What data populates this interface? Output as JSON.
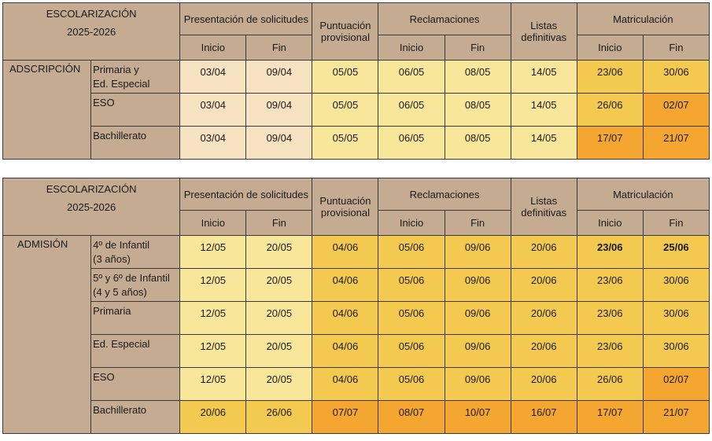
{
  "headers": {
    "title_line1": "ESCOLARIZACIÓN",
    "title_line2": "2025-2026",
    "presentacion": "Presentación de solicitudes",
    "puntuacion_line1": "Puntuación",
    "puntuacion_line2": "provisional",
    "reclamaciones": "Reclamaciones",
    "listas_line1": "Listas",
    "listas_line2": "definitivas",
    "matriculacion": "Matriculación",
    "inicio": "Inicio",
    "fin": "Fin"
  },
  "colors": {
    "header_tan": "#c4ab92",
    "pale_peach": "#f6e1c1",
    "pale_yellow": "#f8e69a",
    "gold": "#f4c94f",
    "orange": "#f5a631"
  },
  "adscripcion": {
    "label": "ADSCRIPCIÓN",
    "rows": [
      {
        "level_line1": "Primaria y",
        "level_line2": "Ed. Especial",
        "dates": [
          "03/04",
          "09/04",
          "05/05",
          "06/05",
          "08/05",
          "14/05",
          "23/06",
          "30/06"
        ]
      },
      {
        "level_line1": "ESO",
        "level_line2": "",
        "dates": [
          "03/04",
          "09/04",
          "05/05",
          "06/05",
          "08/05",
          "14/05",
          "26/06",
          "02/07"
        ]
      },
      {
        "level_line1": "Bachillerato",
        "level_line2": "",
        "dates": [
          "03/04",
          "09/04",
          "05/05",
          "06/05",
          "08/05",
          "14/05",
          "17/07",
          "21/07"
        ]
      }
    ]
  },
  "admision": {
    "label": "ADMISIÓN",
    "rows": [
      {
        "level_line1": "4º de Infantil",
        "level_line2": "(3 años)",
        "dates": [
          "12/05",
          "20/05",
          "04/06",
          "05/06",
          "09/06",
          "20/06",
          "23/06",
          "25/06"
        ]
      },
      {
        "level_line1": "5º y 6º de Infantil",
        "level_line2": "(4 y 5 años)",
        "dates": [
          "12/05",
          "20/05",
          "04/06",
          "05/06",
          "09/06",
          "20/06",
          "23/06",
          "30/06"
        ]
      },
      {
        "level_line1": "Primaria",
        "level_line2": "",
        "dates": [
          "12/05",
          "20/05",
          "04/06",
          "05/06",
          "09/06",
          "20/06",
          "23/06",
          "30/06"
        ]
      },
      {
        "level_line1": "Ed. Especial",
        "level_line2": "",
        "dates": [
          "12/05",
          "20/05",
          "04/06",
          "05/06",
          "09/06",
          "20/06",
          "23/06",
          "30/06"
        ]
      },
      {
        "level_line1": "ESO",
        "level_line2": "",
        "dates": [
          "12/05",
          "20/05",
          "04/06",
          "05/06",
          "09/06",
          "20/06",
          "26/06",
          "02/07"
        ]
      },
      {
        "level_line1": "Bachillerato",
        "level_line2": "",
        "dates": [
          "20/06",
          "26/06",
          "07/07",
          "08/07",
          "10/07",
          "16/07",
          "17/07",
          "21/07"
        ]
      }
    ]
  }
}
